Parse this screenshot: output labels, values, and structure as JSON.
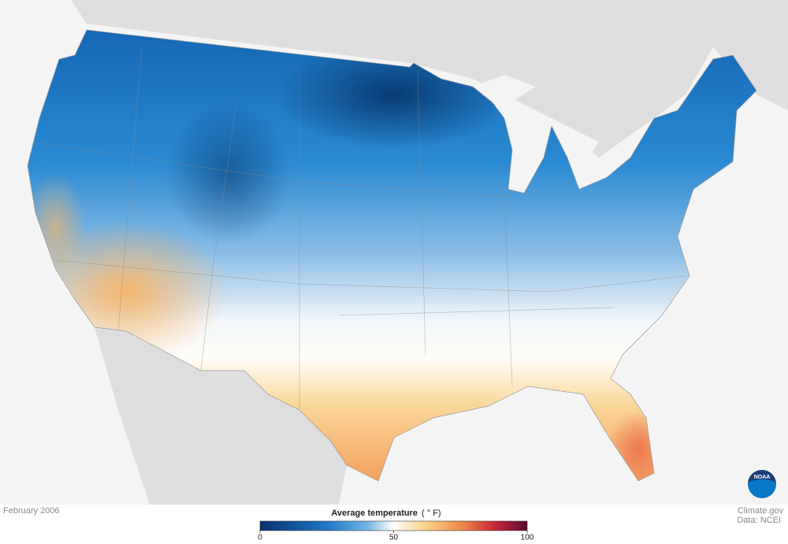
{
  "date": "February 2006",
  "credit": {
    "site": "Climate.gov",
    "source": "Data: NCEI"
  },
  "logo": "NOAA",
  "legend": {
    "title": "Average temperature",
    "unit": "( ° F)",
    "range": [
      0,
      100
    ],
    "ticks": [
      0,
      50,
      100
    ]
  }
}
